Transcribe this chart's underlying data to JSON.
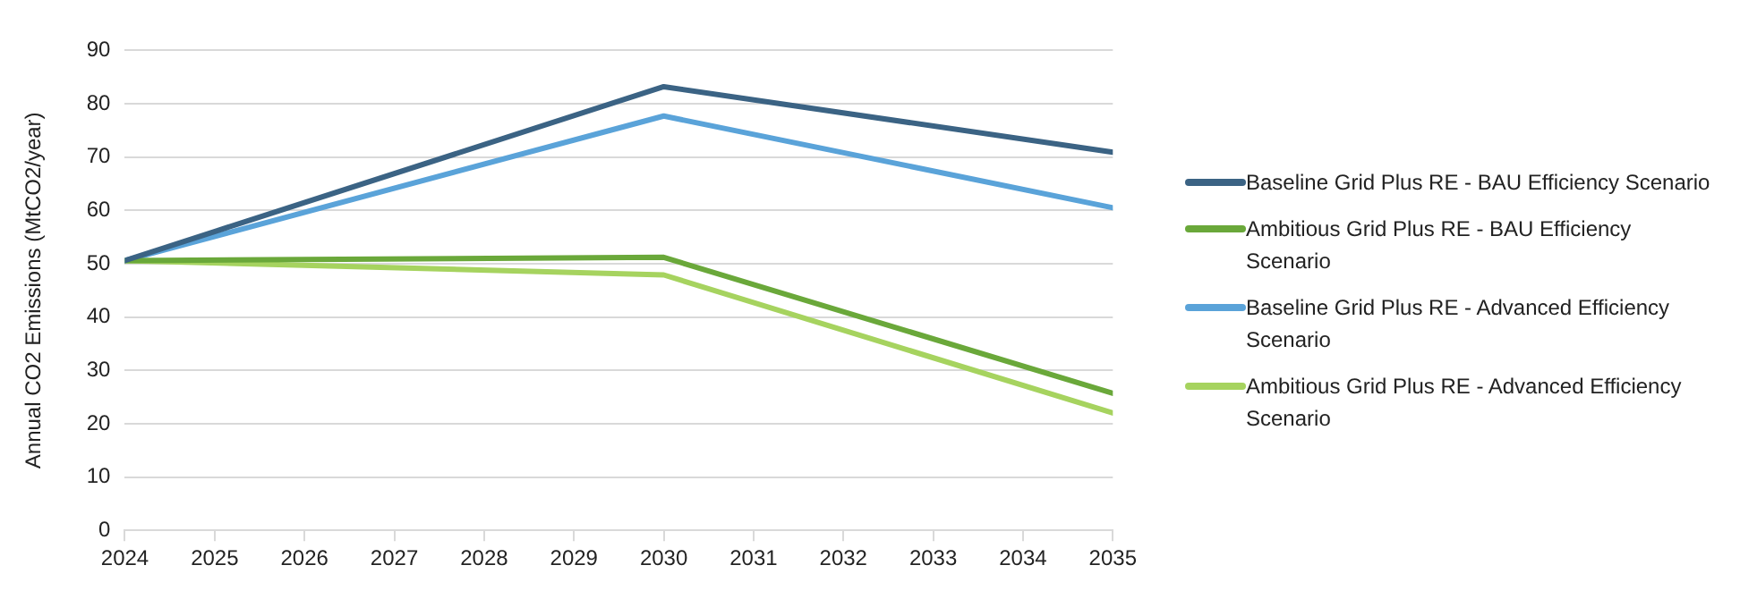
{
  "chart_data": {
    "type": "line",
    "ylabel": "Annual CO2 Emissions (MtCO2/year)",
    "xlim": [
      2024,
      2035
    ],
    "xticks": [
      2024,
      2025,
      2026,
      2027,
      2028,
      2029,
      2030,
      2031,
      2032,
      2033,
      2034,
      2035
    ],
    "ylim": [
      0,
      90
    ],
    "yticks": [
      0,
      10,
      20,
      30,
      40,
      50,
      60,
      70,
      80,
      90
    ],
    "grid": "y",
    "legend": "right",
    "marker": "none",
    "line_style": "solid",
    "series": [
      {
        "name": "Baseline Grid Plus RE - BAU Efficiency Scenario",
        "color": "#3b6384",
        "x": [
          2024,
          2030,
          2035
        ],
        "values": [
          50.6,
          83.2,
          70.9
        ]
      },
      {
        "name": "Ambitious Grid Plus RE - BAU Efficiency Scenario",
        "color": "#6aa83a",
        "x": [
          2024,
          2030,
          2035
        ],
        "values": [
          50.6,
          51.2,
          25.7
        ]
      },
      {
        "name": "Baseline Grid Plus RE - Advanced Efficiency Scenario",
        "color": "#5aa3d9",
        "x": [
          2024,
          2030,
          2035
        ],
        "values": [
          50.6,
          77.7,
          60.5
        ]
      },
      {
        "name": "Ambitious Grid Plus RE - Advanced Efficiency Scenario",
        "color": "#a6d35f",
        "x": [
          2024,
          2030,
          2035
        ],
        "values": [
          50.6,
          47.9,
          22.0
        ]
      }
    ]
  }
}
